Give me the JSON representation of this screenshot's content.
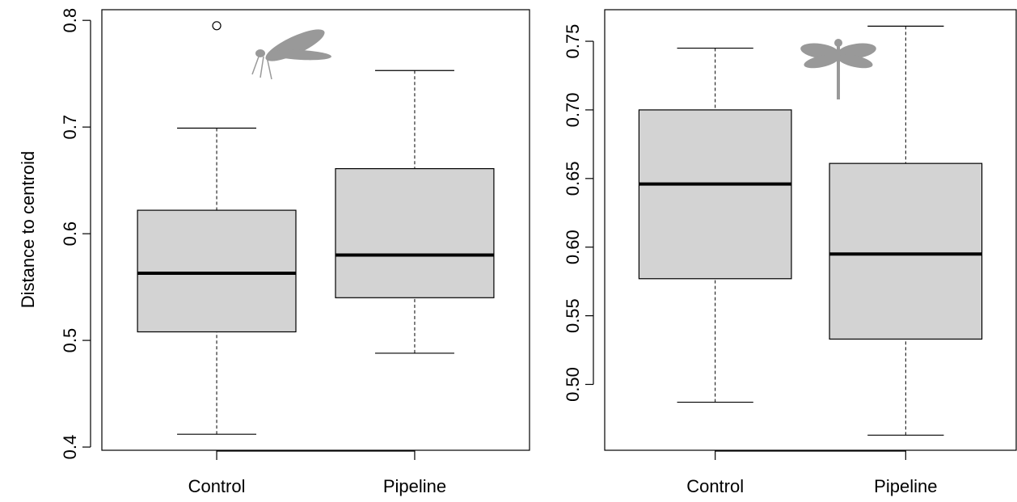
{
  "chart_data": [
    {
      "type": "boxplot",
      "y_label": "Distance to centroid",
      "categories": [
        "Control",
        "Pipeline"
      ],
      "boxes": [
        {
          "min": 0.412,
          "q1": 0.508,
          "median": 0.563,
          "q3": 0.622,
          "max": 0.699,
          "outliers": [
            0.795
          ]
        },
        {
          "min": 0.488,
          "q1": 0.54,
          "median": 0.58,
          "q3": 0.661,
          "max": 0.753,
          "outliers": []
        }
      ],
      "color": "#d3d3d3",
      "ylim": [
        0.397,
        0.81
      ],
      "yticks": [
        0.4,
        0.5,
        0.6,
        0.7,
        0.8
      ]
    },
    {
      "type": "boxplot",
      "categories": [
        "Control",
        "Pipeline"
      ],
      "boxes": [
        {
          "min": 0.487,
          "q1": 0.577,
          "median": 0.646,
          "q3": 0.7,
          "max": 0.745,
          "outliers": []
        },
        {
          "min": 0.463,
          "q1": 0.533,
          "median": 0.595,
          "q3": 0.661,
          "max": 0.761,
          "outliers": []
        }
      ],
      "color": "#d3d3d3",
      "ylim": [
        0.452,
        0.773
      ],
      "yticks": [
        {
          "value": 0.5,
          "label": "0.50"
        },
        0.55,
        {
          "value": 0.6,
          "label": "0.60"
        },
        0.65,
        {
          "value": 0.7,
          "label": "0.70"
        },
        0.75
      ]
    }
  ]
}
